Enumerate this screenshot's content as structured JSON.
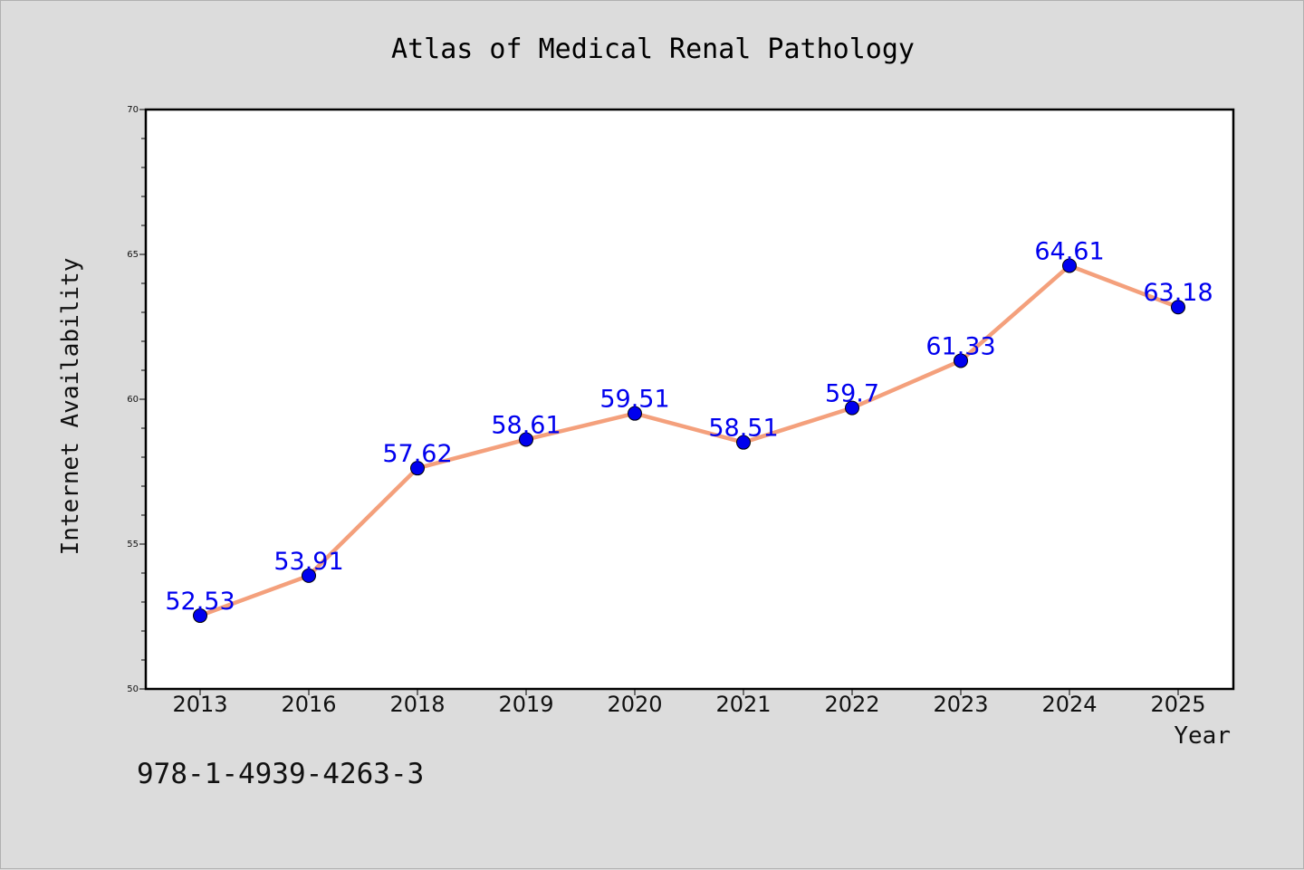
{
  "chart_data": {
    "type": "line",
    "title": "Atlas of Medical Renal Pathology",
    "xlabel": "Year",
    "ylabel": "Internet Availability",
    "categories": [
      "2013",
      "2016",
      "2018",
      "2019",
      "2020",
      "2021",
      "2022",
      "2023",
      "2024",
      "2025"
    ],
    "values": [
      52.53,
      53.91,
      57.62,
      58.61,
      59.51,
      58.51,
      59.7,
      61.33,
      64.61,
      63.18
    ],
    "data_labels": [
      "52.53",
      "53.91",
      "57.62",
      "58.61",
      "59.51",
      "58.51",
      "59.7",
      "61.33",
      "64.61",
      "63.18"
    ],
    "ylim": [
      50,
      70
    ],
    "yticks": [
      "50",
      "55",
      "60",
      "65",
      "70"
    ],
    "grid": false,
    "legend": "none",
    "colors": {
      "line": "#f4a07c",
      "marker": "#0000ee",
      "label": "#0000ee",
      "background": "#dcdcdc",
      "plot_bg": "#ffffff"
    }
  },
  "footer_text": "978-1-4939-4263-3"
}
